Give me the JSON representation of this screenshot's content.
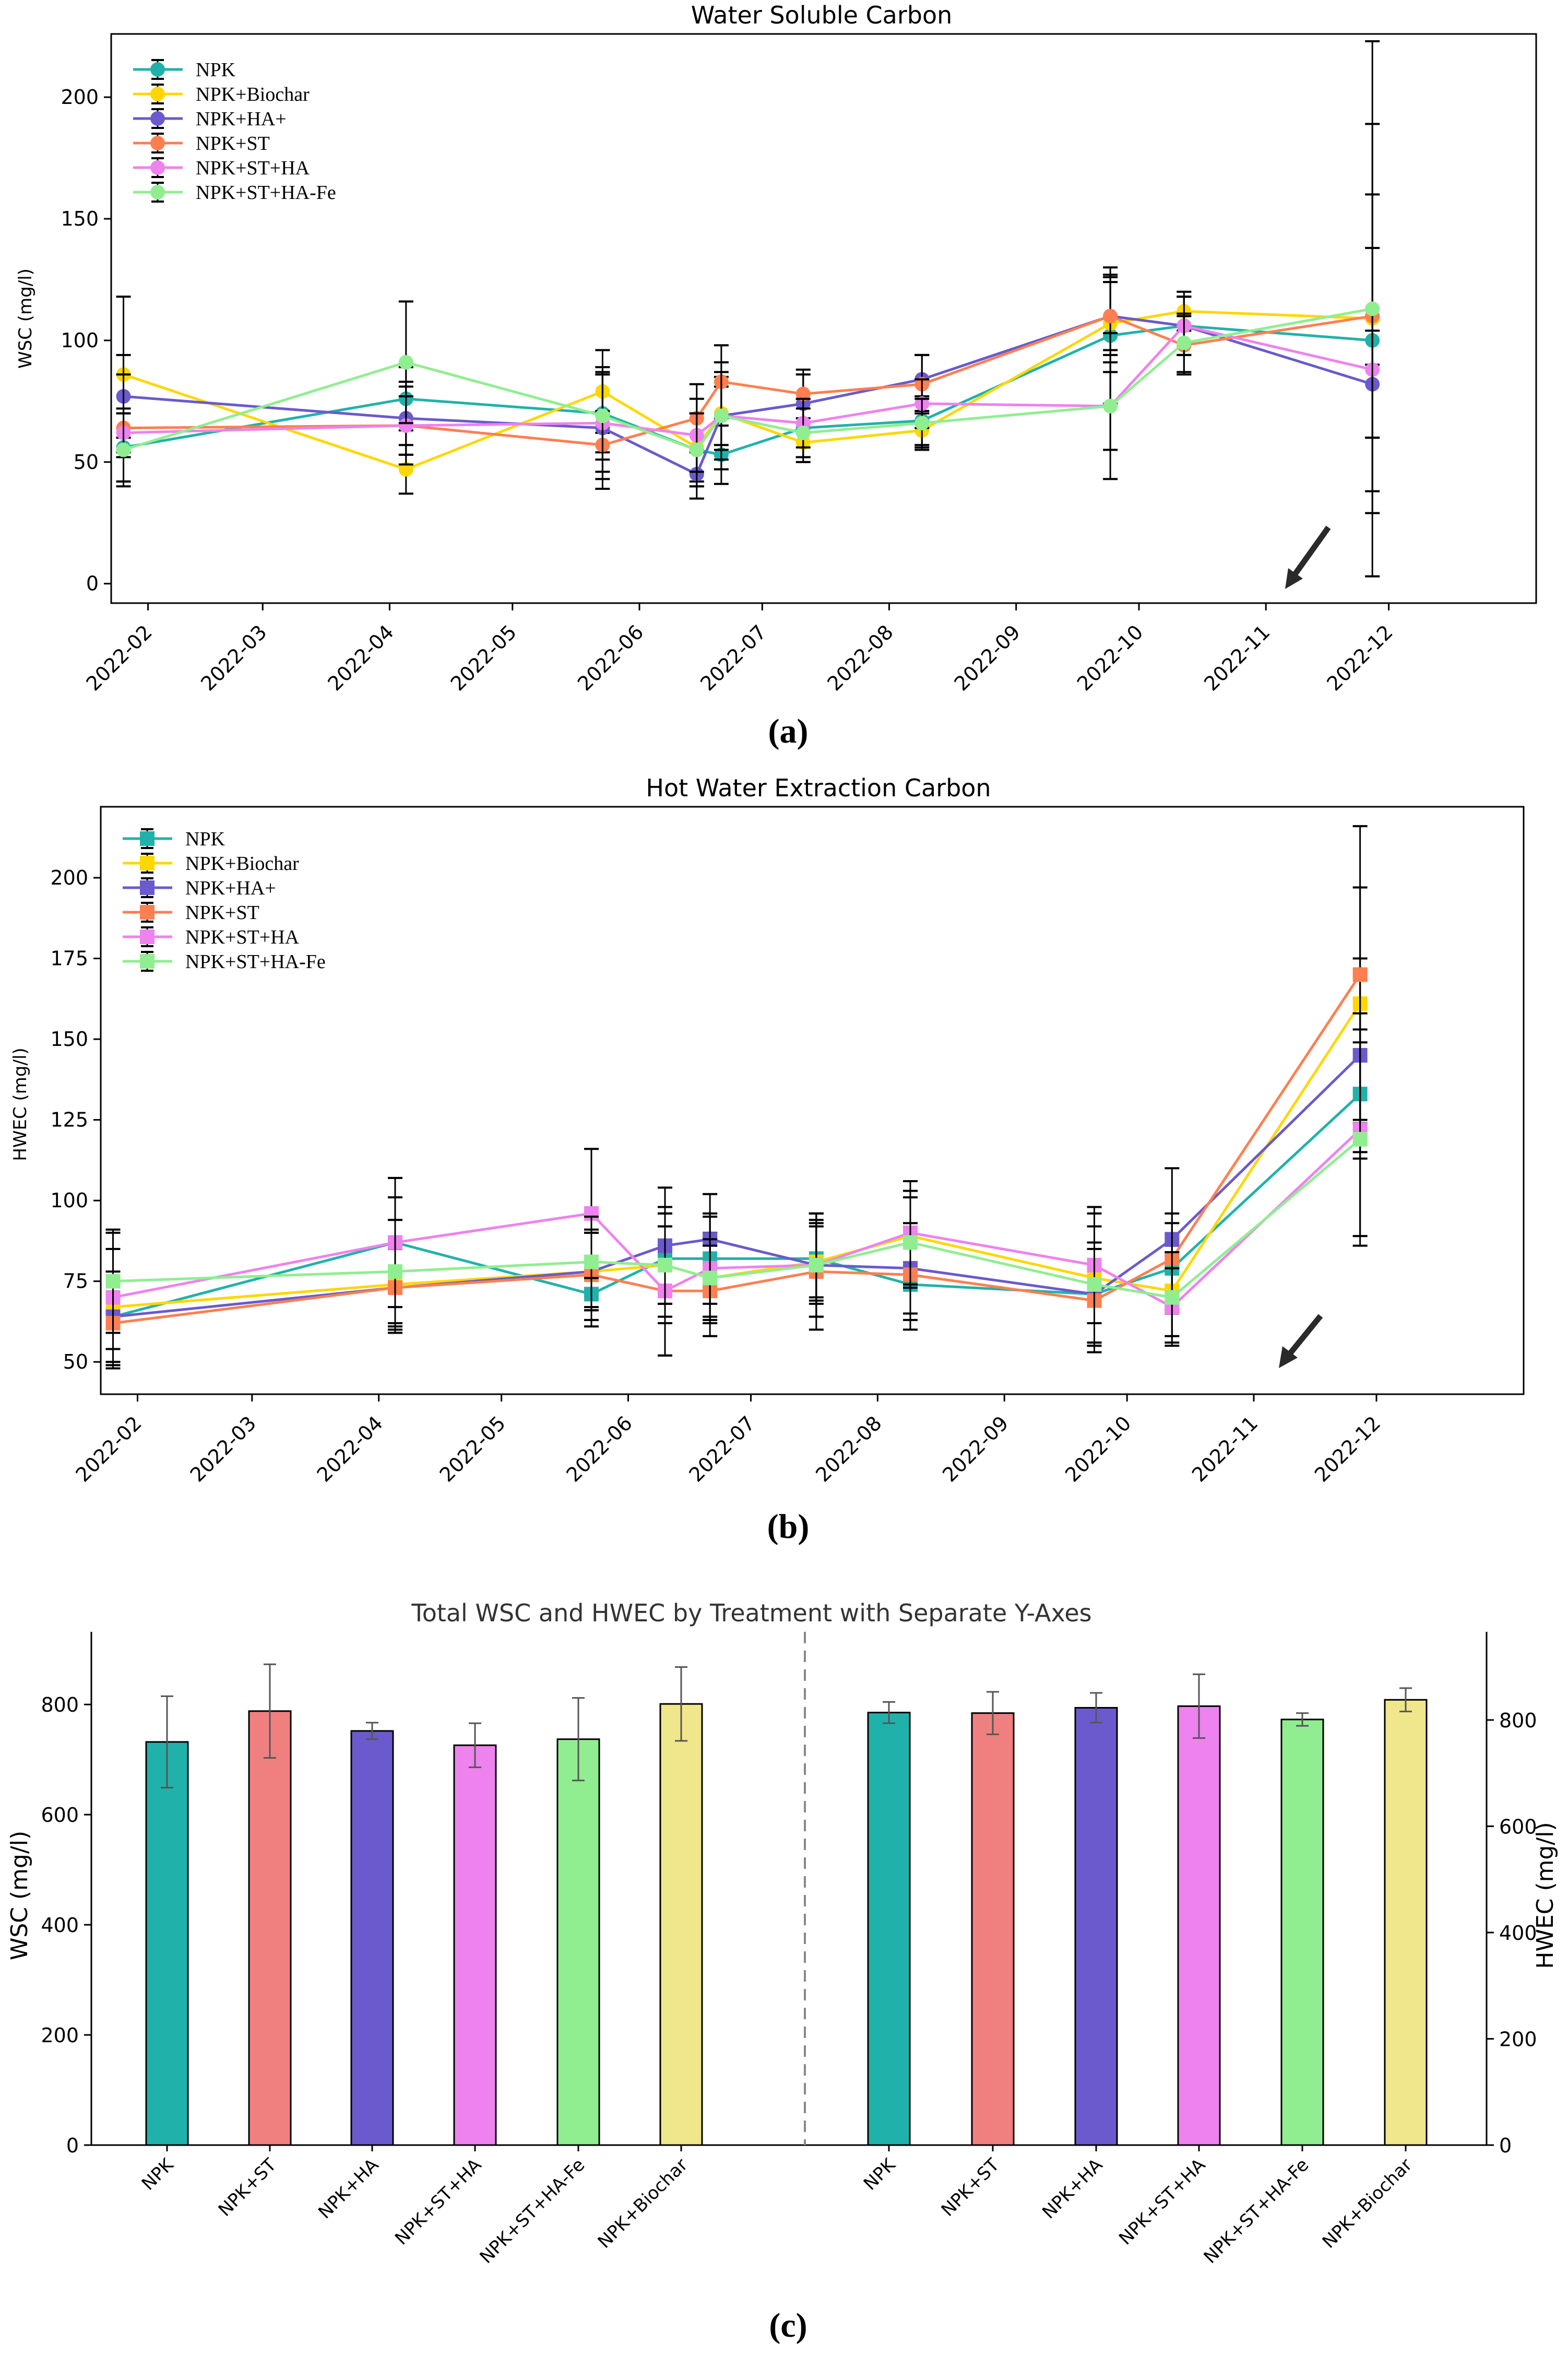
{
  "panels": [
    {
      "id": "a",
      "caption": "(a)",
      "chart_data": {
        "type": "line",
        "title": "Water Soluble Carbon",
        "xlabel": "",
        "ylabel": "WSC (mg/l)",
        "marker": "circle",
        "ylim": [
          -8,
          226
        ],
        "yticks": [
          0,
          50,
          100,
          150,
          200
        ],
        "xlim": [
          -9,
          339
        ],
        "xticks": [
          {
            "label": "2022-02",
            "day": 0
          },
          {
            "label": "2022-03",
            "day": 28
          },
          {
            "label": "2022-04",
            "day": 59
          },
          {
            "label": "2022-05",
            "day": 89
          },
          {
            "label": "2022-06",
            "day": 120
          },
          {
            "label": "2022-07",
            "day": 150
          },
          {
            "label": "2022-08",
            "day": 181
          },
          {
            "label": "2022-09",
            "day": 212
          },
          {
            "label": "2022-10",
            "day": 242
          },
          {
            "label": "2022-11",
            "day": 273
          },
          {
            "label": "2022-12",
            "day": 303
          }
        ],
        "x_days": [
          -6,
          63,
          111,
          134,
          140,
          160,
          189,
          235,
          253,
          299
        ],
        "series": [
          {
            "name": "NPK",
            "color": "#20b2aa",
            "values": [
              56,
              76,
              70,
              55,
              53,
              64,
              67,
              102,
              106,
              100
            ],
            "errors": [
              14,
              13,
              16,
              15,
              12,
              12,
              10,
              28,
              12,
              10
            ]
          },
          {
            "name": "NPK+Biochar",
            "color": "#ffd700",
            "values": [
              86,
              47,
              79,
              56,
              70,
              58,
              63,
              107,
              112,
              109
            ],
            "errors": [
              32,
              10,
              17,
              14,
              15,
              8,
              8,
              20,
              8,
              80
            ]
          },
          {
            "name": "NPK+HA+",
            "color": "#6a5acd",
            "values": [
              77,
              68,
              64,
              45,
              69,
              74,
              84,
              110,
              106,
              82
            ],
            "errors": [
              17,
              15,
              25,
              10,
              12,
              12,
              10,
              14,
              12,
              22
            ]
          },
          {
            "name": "NPK+ST",
            "color": "#ff7f50",
            "values": [
              64,
              65,
              57,
              68,
              83,
              78,
              82,
              110,
              98,
              110
            ],
            "errors": [
              22,
              16,
              14,
              14,
              15,
              10,
              12,
              16,
              12,
              50
            ]
          },
          {
            "name": "NPK+ST+HA",
            "color": "#ee82ee",
            "values": [
              62,
              65,
              66,
              61,
              69,
              66,
              74,
              73,
              106,
              88
            ],
            "errors": [
              10,
              12,
              20,
              15,
              18,
              10,
              10,
              18,
              12,
              50
            ]
          },
          {
            "name": "NPK+ST+HA-Fe",
            "color": "#90ee90",
            "values": [
              55,
              91,
              69,
              55,
              69,
              62,
              66,
              73,
              99,
              113
            ],
            "errors": [
              15,
              25,
              18,
              15,
              22,
              10,
              10,
              30,
              12,
              110
            ]
          }
        ]
      }
    },
    {
      "id": "b",
      "caption": "(b)",
      "chart_data": {
        "type": "line",
        "title": "Hot Water Extraction Carbon",
        "xlabel": "",
        "ylabel": "HWEC (mg/l)",
        "marker": "square",
        "ylim": [
          40,
          222
        ],
        "yticks": [
          50,
          75,
          100,
          125,
          150,
          175,
          200
        ],
        "xlim": [
          -9,
          339
        ],
        "xticks": [
          {
            "label": "2022-02",
            "day": 0
          },
          {
            "label": "2022-03",
            "day": 28
          },
          {
            "label": "2022-04",
            "day": 59
          },
          {
            "label": "2022-05",
            "day": 89
          },
          {
            "label": "2022-06",
            "day": 120
          },
          {
            "label": "2022-07",
            "day": 150
          },
          {
            "label": "2022-08",
            "day": 181
          },
          {
            "label": "2022-09",
            "day": 212
          },
          {
            "label": "2022-10",
            "day": 242
          },
          {
            "label": "2022-11",
            "day": 273
          },
          {
            "label": "2022-12",
            "day": 303
          }
        ],
        "x_days": [
          -6,
          63,
          111,
          129,
          140,
          166,
          189,
          234,
          253,
          299
        ],
        "series": [
          {
            "name": "NPK",
            "color": "#20b2aa",
            "values": [
              64,
              87,
              71,
              82,
              82,
              82,
              74,
              71,
              79,
              133
            ],
            "errors": [
              14,
              14,
              10,
              14,
              14,
              12,
              14,
              16,
              14,
              20
            ]
          },
          {
            "name": "NPK+Biochar",
            "color": "#ffd700",
            "values": [
              67,
              74,
              78,
              80,
              76,
              81,
              89,
              76,
              72,
              161
            ],
            "errors": [
              18,
              14,
              12,
              16,
              14,
              12,
              14,
              20,
              14,
              36
            ]
          },
          {
            "name": "NPK+HA+",
            "color": "#6a5acd",
            "values": [
              64,
              73,
              78,
              86,
              88,
              80,
              79,
              71,
              88,
              145
            ],
            "errors": [
              10,
              12,
              12,
              18,
              14,
              12,
              14,
              16,
              22,
              30
            ]
          },
          {
            "name": "NPK+ST",
            "color": "#ff7f50",
            "values": [
              62,
              73,
              77,
              72,
              72,
              78,
              77,
              69,
              82,
              170
            ],
            "errors": [
              14,
              14,
              14,
              20,
              14,
              18,
              14,
              16,
              14,
              46
            ]
          },
          {
            "name": "NPK+ST+HA",
            "color": "#ee82ee",
            "values": [
              70,
              87,
              96,
              72,
              79,
              80,
              90,
              80,
              67,
              122
            ],
            "errors": [
              20,
              20,
              20,
              20,
              16,
              16,
              16,
              18,
              12,
              36
            ]
          },
          {
            "name": "NPK+ST+HA-Fe",
            "color": "#90ee90",
            "values": [
              75,
              78,
              81,
              80,
              76,
              80,
              87,
              74,
              70,
              119
            ],
            "errors": [
              16,
              16,
              14,
              18,
              12,
              16,
              14,
              18,
              14,
              30
            ]
          }
        ]
      }
    },
    {
      "id": "c",
      "caption": "(c)",
      "chart_data": {
        "type": "bar",
        "title": "Total WSC and HWEC by Treatment with Separate Y-Axes",
        "categories": [
          "NPK",
          "NPK+ST",
          "NPK+HA",
          "NPK+ST+HA",
          "NPK+ST+HA-Fe",
          "NPK+Biochar"
        ],
        "colors": [
          "#20b2aa",
          "#f08080",
          "#6a5acd",
          "#ee82ee",
          "#90ee90",
          "#f0e68c"
        ],
        "series": [
          {
            "name": "WSC",
            "axis": "left",
            "ylabel": "WSC (mg/l)",
            "ylim": [
              0,
              932
            ],
            "yticks": [
              0,
              200,
              400,
              600,
              800
            ],
            "values": [
              732,
              788,
              752,
              726,
              737,
              801
            ],
            "errors": [
              83,
              85,
              15,
              40,
              75,
              67
            ]
          },
          {
            "name": "HWEC",
            "axis": "right",
            "ylabel": "HWEC (mg/l)",
            "ylim": [
              0,
              966
            ],
            "yticks": [
              0,
              200,
              400,
              600,
              800
            ],
            "values": [
              814,
              813,
              823,
              826,
              801,
              838
            ],
            "errors": [
              20,
              40,
              28,
              60,
              12,
              22
            ]
          }
        ]
      }
    }
  ]
}
